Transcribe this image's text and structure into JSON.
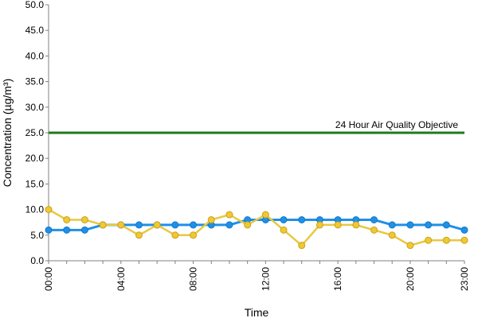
{
  "chart_data": {
    "type": "line",
    "xlabel": "Time",
    "ylabel": "Concentration (µg/m³)",
    "ylim": [
      0,
      50
    ],
    "yticks": [
      "0.0",
      "5.0",
      "10.0",
      "15.0",
      "20.0",
      "25.0",
      "30.0",
      "35.0",
      "40.0",
      "45.0",
      "50.0"
    ],
    "x": [
      "00:00",
      "01:00",
      "02:00",
      "03:00",
      "04:00",
      "05:00",
      "06:00",
      "07:00",
      "08:00",
      "09:00",
      "10:00",
      "11:00",
      "12:00",
      "13:00",
      "14:00",
      "15:00",
      "16:00",
      "17:00",
      "18:00",
      "19:00",
      "20:00",
      "21:00",
      "22:00",
      "23:00"
    ],
    "xtick_labels": [
      "00:00",
      "04:00",
      "08:00",
      "12:00",
      "16:00",
      "20:00",
      "23:00"
    ],
    "xtick_hours": [
      0,
      4,
      8,
      12,
      16,
      20,
      23
    ],
    "grid": false,
    "legend": "none",
    "series": [
      {
        "color": "#1e90e8",
        "marker_fill": "#1e90e8",
        "values": [
          6,
          6,
          6,
          7,
          7,
          7,
          7,
          7,
          7,
          7,
          7,
          8,
          8,
          8,
          8,
          8,
          8,
          8,
          8,
          7,
          7,
          7,
          7,
          6
        ]
      },
      {
        "color": "#e8c840",
        "marker_fill": "#f0c832",
        "values": [
          10,
          8,
          8,
          7,
          7,
          5,
          7,
          5,
          5,
          8,
          9,
          7,
          9,
          6,
          3,
          7,
          7,
          7,
          6,
          5,
          3,
          4,
          4,
          4
        ]
      }
    ],
    "reference_line": {
      "value": 25,
      "label": "24 Hour Air Quality Objective",
      "color": "#1f7a1f"
    }
  }
}
